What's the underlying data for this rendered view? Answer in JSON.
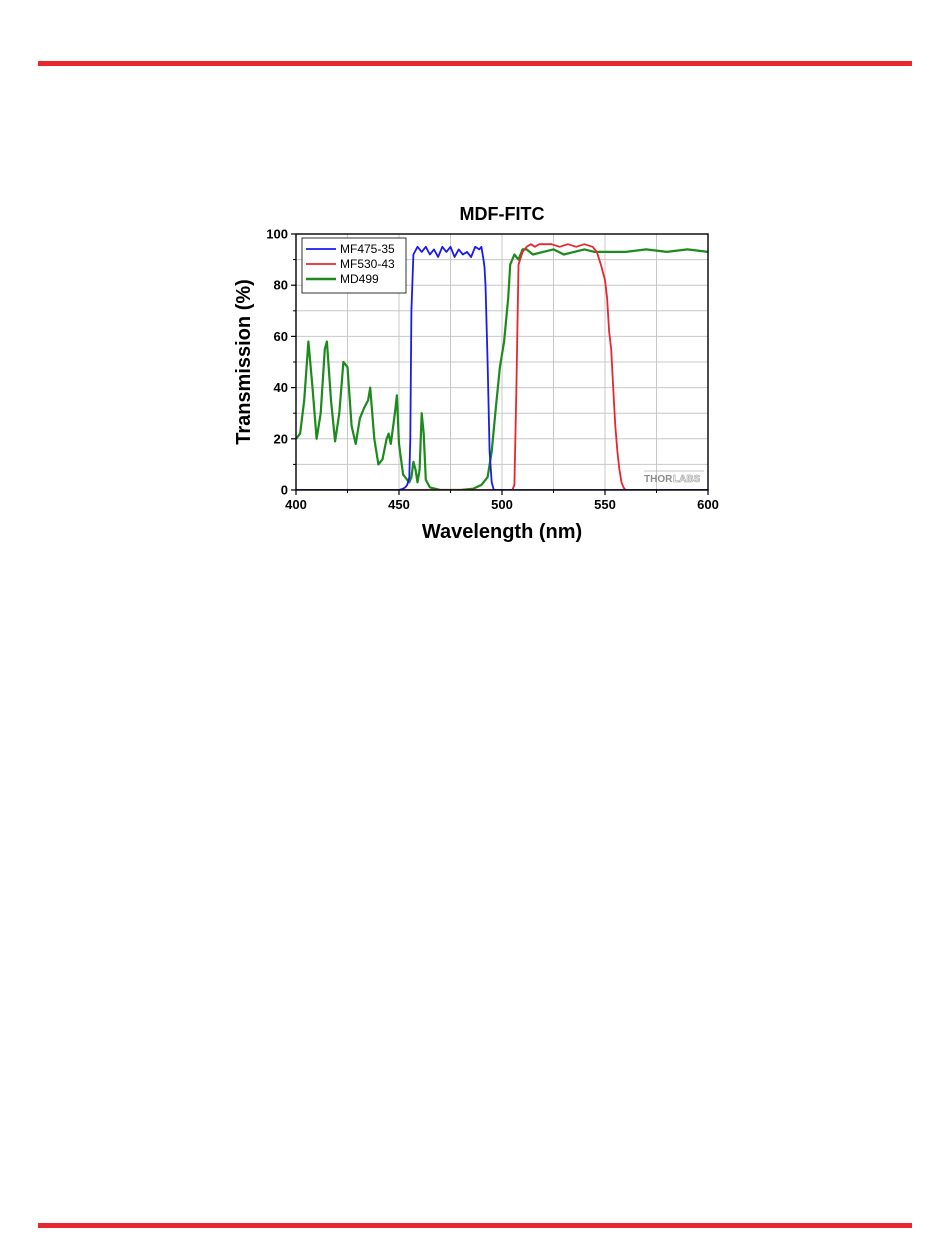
{
  "page": {
    "rule_color": "#e8262e"
  },
  "logo": {
    "part1": "THOR",
    "part2": "LABS"
  },
  "chart_data": {
    "type": "line",
    "title": "MDF-FITC",
    "xlabel": "Wavelength (nm)",
    "ylabel": "Transmission (%)",
    "xlim": [
      400,
      600
    ],
    "ylim": [
      0,
      100
    ],
    "xticks": [
      400,
      450,
      500,
      550,
      600
    ],
    "yticks": [
      0,
      20,
      40,
      60,
      80,
      100
    ],
    "grid": true,
    "legend_position": "top-left",
    "series": [
      {
        "name": "MF475-35",
        "color": "#1a1aee",
        "x": [
          400,
          450,
          452,
          453,
          454,
          455,
          455.5,
          456,
          457,
          459,
          461,
          463,
          465,
          467,
          469,
          471,
          473,
          475,
          477,
          479,
          481,
          483,
          485,
          487,
          489,
          490,
          491,
          491.5,
          492,
          493,
          494,
          495,
          496,
          600
        ],
        "y": [
          0,
          0,
          0.5,
          1,
          2,
          5,
          20,
          70,
          92,
          95,
          93,
          95,
          92,
          94,
          91,
          95,
          93,
          95,
          91,
          94,
          92,
          93,
          91,
          95,
          94,
          95,
          90,
          87,
          80,
          50,
          15,
          3,
          0,
          0
        ]
      },
      {
        "name": "MF530-43",
        "color": "#e8262e",
        "x": [
          400,
          505,
          506,
          507,
          508,
          510,
          512,
          514,
          516,
          518,
          520,
          524,
          528,
          532,
          536,
          540,
          544,
          546,
          548,
          550,
          551,
          552,
          553,
          554,
          555,
          556,
          557,
          558,
          559,
          560,
          600
        ],
        "y": [
          0,
          0,
          2,
          40,
          88,
          93,
          95,
          96,
          95,
          96,
          96,
          96,
          95,
          96,
          95,
          96,
          95,
          93,
          88,
          82,
          75,
          62,
          55,
          40,
          25,
          15,
          8,
          3,
          1,
          0,
          0
        ]
      },
      {
        "name": "MD499",
        "color": "#1c8a1c",
        "x": [
          400,
          402,
          404,
          406,
          408,
          410,
          412,
          414,
          415,
          417,
          419,
          421,
          423,
          425,
          427,
          429,
          431,
          433,
          435,
          436,
          438,
          440,
          442,
          444,
          445,
          446,
          448,
          449,
          450,
          452,
          454,
          455,
          456,
          457,
          458,
          459,
          460,
          461,
          462,
          463,
          465,
          470,
          480,
          486,
          490,
          493,
          495,
          497,
          499,
          501,
          503,
          504,
          506,
          508,
          510,
          512,
          515,
          520,
          525,
          530,
          535,
          540,
          545,
          550,
          560,
          570,
          580,
          590,
          600
        ],
        "y": [
          20,
          22,
          35,
          58,
          40,
          20,
          30,
          55,
          58,
          35,
          19,
          30,
          50,
          48,
          25,
          18,
          28,
          32,
          35,
          40,
          20,
          10,
          12,
          20,
          22,
          18,
          30,
          37,
          18,
          6,
          4,
          3,
          5,
          11,
          8,
          3,
          8,
          30,
          22,
          4,
          1,
          0,
          0,
          0.5,
          2,
          5,
          15,
          32,
          48,
          58,
          75,
          88,
          92,
          90,
          94,
          94,
          92,
          93,
          94,
          92,
          93,
          94,
          93,
          93,
          93,
          94,
          93,
          94,
          93
        ]
      }
    ]
  }
}
